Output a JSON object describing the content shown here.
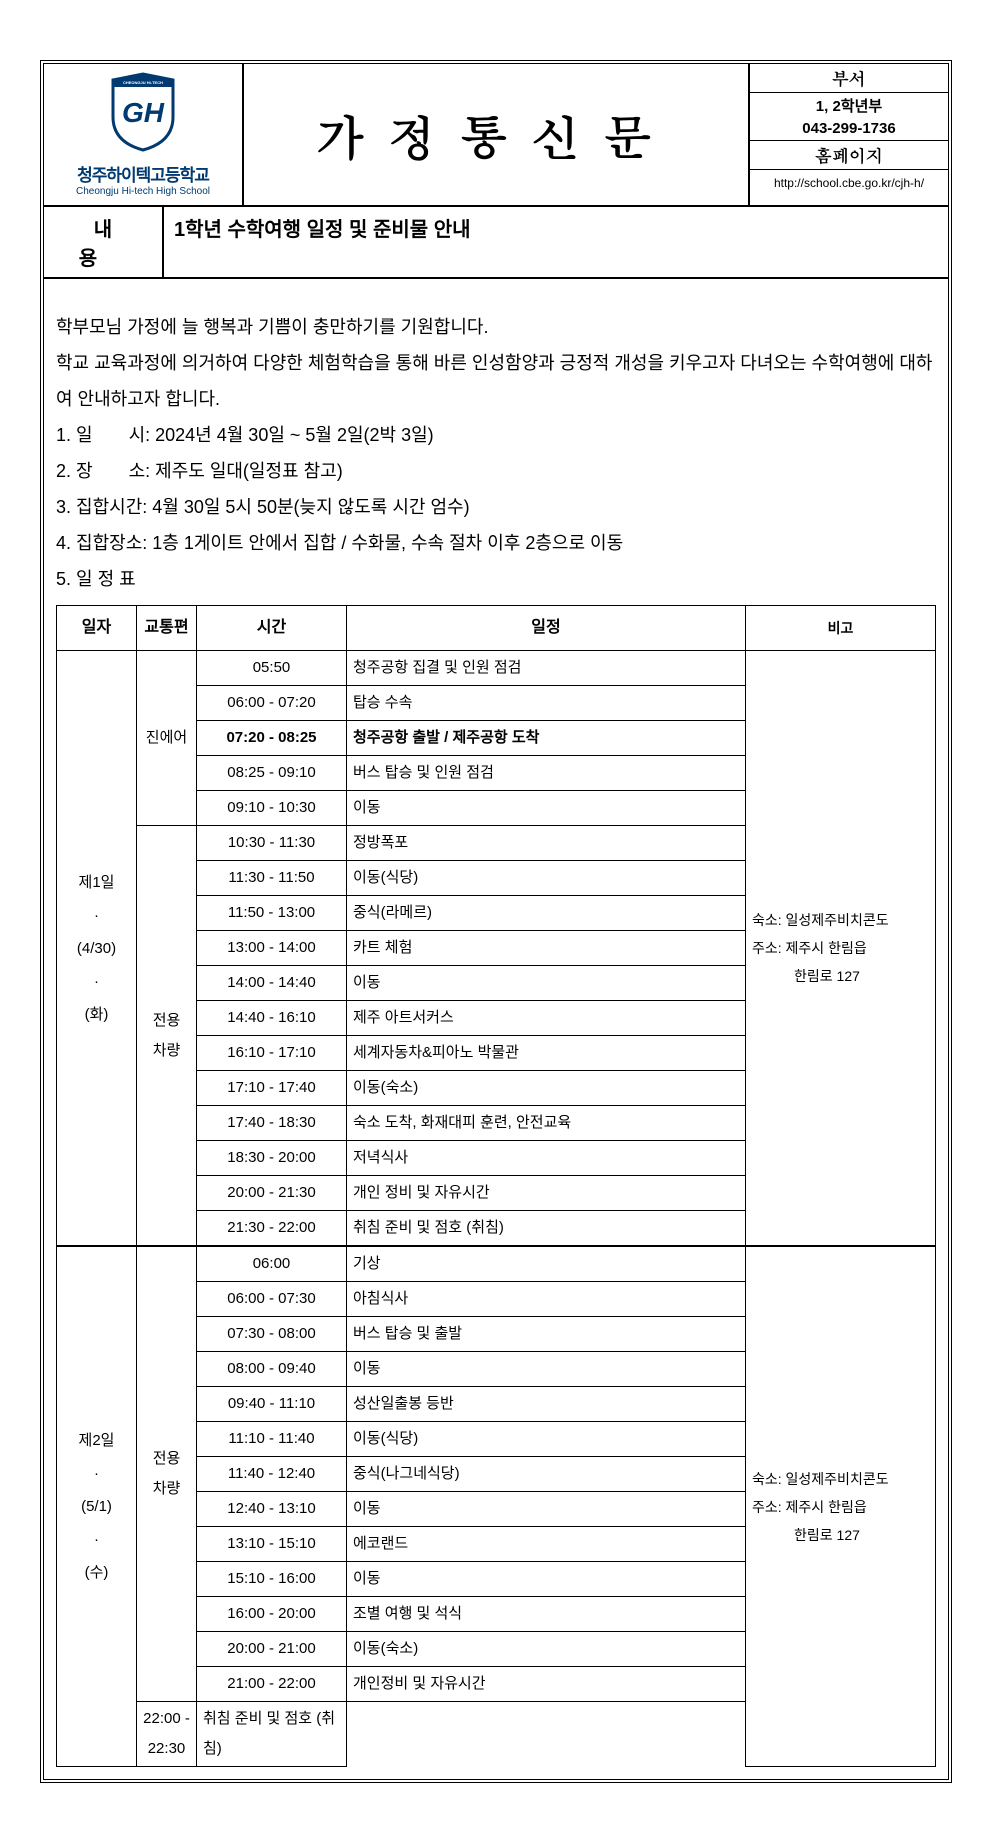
{
  "header": {
    "school_name_kr": "청주하이텍고등학교",
    "school_name_en": "Cheongju Hi-tech High School",
    "logo_text_top": "CHEONGJU HI-TECH",
    "logo_text_sub": "HIGH SCHOOL",
    "title": "가정통신문",
    "dept_label": "부서",
    "dept_value": "1, 2학년부",
    "phone": "043-299-1736",
    "homepage_label": "홈페이지",
    "homepage_url": "http://school.cbe.go.kr/cjh-h/"
  },
  "subject": {
    "label": "내용",
    "value": "1학년 수학여행 일정 및 준비물 안내"
  },
  "body": {
    "greeting": "학부모님 가정에 늘 행복과 기쁨이 충만하기를 기원합니다.",
    "intro": "학교 교육과정에 의거하여 다양한 체험학습을 통해 바른 인성함양과 긍정적 개성을 키우고자 다녀오는 수학여행에 대하여 안내하고자 합니다.",
    "items": [
      "1. 일　　시: 2024년 4월 30일 ~ 5월 2일(2박 3일)",
      "2. 장　　소: 제주도 일대(일정표 참고)",
      "3. 집합시간: 4월 30일 5시 50분(늦지 않도록 시간 엄수)",
      "4. 집합장소: 1층 1게이트 안에서 집합 / 수화물, 수속 절차 이후 2층으로 이동",
      "5. 일 정 표"
    ]
  },
  "schedule": {
    "headers": {
      "date": "일자",
      "transport": "교통편",
      "time": "시간",
      "activity": "일정",
      "note": "비고"
    },
    "days": [
      {
        "date_lines": [
          "제1일",
          "·",
          "(4/30)",
          "·",
          "(화)"
        ],
        "transport_groups": [
          {
            "label": "진에어",
            "span": 5
          },
          {
            "label": "전용\n차량",
            "span": 12
          }
        ],
        "rows": [
          {
            "time": "05:50",
            "activity": "청주공항 집결 및 인원 점검",
            "bold": false
          },
          {
            "time": "06:00 - 07:20",
            "activity": "탑승 수속",
            "bold": false
          },
          {
            "time": "07:20 - 08:25",
            "activity": "청주공항 출발 / 제주공항 도착",
            "bold": true
          },
          {
            "time": "08:25 - 09:10",
            "activity": "버스 탑승 및 인원 점검",
            "bold": false
          },
          {
            "time": "09:10 - 10:30",
            "activity": "이동",
            "bold": false
          },
          {
            "time": "10:30 - 11:30",
            "activity": "정방폭포",
            "bold": false
          },
          {
            "time": "11:30 - 11:50",
            "activity": "이동(식당)",
            "bold": false
          },
          {
            "time": "11:50 - 13:00",
            "activity": "중식(라메르)",
            "bold": false
          },
          {
            "time": "13:00 - 14:00",
            "activity": "카트 체험",
            "bold": false
          },
          {
            "time": "14:00 - 14:40",
            "activity": "이동",
            "bold": false
          },
          {
            "time": "14:40 - 16:10",
            "activity": "제주 아트서커스",
            "bold": false
          },
          {
            "time": "16:10 - 17:10",
            "activity": "세계자동차&피아노 박물관",
            "bold": false
          },
          {
            "time": "17:10 - 17:40",
            "activity": "이동(숙소)",
            "bold": false
          },
          {
            "time": "17:40 - 18:30",
            "activity": "숙소 도착, 화재대피 훈련, 안전교육",
            "bold": false
          },
          {
            "time": "18:30 - 20:00",
            "activity": "저녁식사",
            "bold": false
          },
          {
            "time": "20:00 - 21:30",
            "activity": "개인 정비 및 자유시간",
            "bold": false
          },
          {
            "time": "21:30 - 22:00",
            "activity": "취침 준비 및 점호 (취침)",
            "bold": false
          }
        ],
        "note": "숙소: 일성제주비치콘도\n주소: 제주시 한림읍\n　　　한림로 127"
      },
      {
        "date_lines": [
          "제2일",
          "·",
          "(5/1)",
          "·",
          "(수)"
        ],
        "transport_groups": [
          {
            "label": "전용\n차량",
            "span": 13
          }
        ],
        "rows": [
          {
            "time": "06:00",
            "activity": "기상",
            "bold": false
          },
          {
            "time": "06:00 - 07:30",
            "activity": "아침식사",
            "bold": false
          },
          {
            "time": "07:30 - 08:00",
            "activity": "버스 탑승 및 출발",
            "bold": false
          },
          {
            "time": "08:00 - 09:40",
            "activity": "이동",
            "bold": false
          },
          {
            "time": "09:40 - 11:10",
            "activity": "성산일출봉 등반",
            "bold": false
          },
          {
            "time": "11:10 - 11:40",
            "activity": "이동(식당)",
            "bold": false
          },
          {
            "time": "11:40 - 12:40",
            "activity": "중식(나그네식당)",
            "bold": false
          },
          {
            "time": "12:40 - 13:10",
            "activity": "이동",
            "bold": false
          },
          {
            "time": "13:10 - 15:10",
            "activity": "에코랜드",
            "bold": false
          },
          {
            "time": "15:10 - 16:00",
            "activity": "이동",
            "bold": false
          },
          {
            "time": "16:00 - 20:00",
            "activity": "조별 여행 및 석식",
            "bold": false
          },
          {
            "time": "20:00 - 21:00",
            "activity": "이동(숙소)",
            "bold": false
          },
          {
            "time": "21:00 - 22:00",
            "activity": "개인정비 및 자유시간",
            "bold": false
          },
          {
            "time": "22:00 - 22:30",
            "activity": "취침 준비 및 점호 (취침)",
            "bold": false
          }
        ],
        "note": "숙소: 일성제주비치콘도\n주소: 제주시 한림읍\n　　　한림로 127"
      }
    ]
  },
  "colors": {
    "border": "#000000",
    "school_blue": "#003a70",
    "background": "#ffffff"
  }
}
